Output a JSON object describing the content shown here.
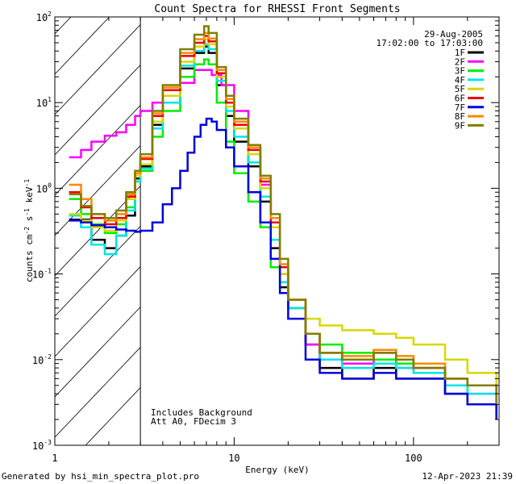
{
  "chart_data": {
    "type": "line",
    "title": "Count Spectra for RHESSI Front Segments",
    "xlabel": "Energy (keV)",
    "ylabel": "counts cm",
    "ylabel_sup1": "-2",
    "ylabel_mid": " s",
    "ylabel_sup2": "-1",
    "ylabel_mid2": " keV",
    "ylabel_sup3": "-1",
    "x_scale": "log",
    "y_scale": "log",
    "xlim": [
      1,
      300
    ],
    "ylim": [
      0.001,
      100
    ],
    "x_tick_labels": [
      {
        "value": 1,
        "label": "1"
      },
      {
        "value": 10,
        "label": "10"
      },
      {
        "value": 100,
        "label": "100"
      }
    ],
    "y_tick_labels": [
      {
        "value": 100,
        "base": "10",
        "exp": "2"
      },
      {
        "value": 10,
        "base": "10",
        "exp": "1"
      },
      {
        "value": 1,
        "base": "10",
        "exp": "0"
      },
      {
        "value": 0.1,
        "base": "10",
        "exp": "-1"
      },
      {
        "value": 0.01,
        "base": "10",
        "exp": "-2"
      },
      {
        "value": 0.001,
        "base": "10",
        "exp": "-3"
      }
    ],
    "hatched_region_xmax": 3,
    "date": "29-Aug-2005",
    "time_range": "17:02:00 to 17:03:00",
    "annotations": [
      "Includes Background",
      "Att A0, FDecim 3"
    ],
    "footer_left": "Generated by hsi_min_spectra_plot.pro",
    "footer_right": "12-Apr-2023 21:39",
    "series": [
      {
        "name": "1F",
        "color": "#000000",
        "points": [
          [
            1.2,
            0.43
          ],
          [
            1.4,
            0.43
          ],
          [
            1.6,
            0.25
          ],
          [
            1.9,
            0.2
          ],
          [
            2.2,
            0.28
          ],
          [
            2.5,
            0.48
          ],
          [
            2.8,
            1.3
          ],
          [
            3.0,
            1.8
          ],
          [
            3.5,
            5.5
          ],
          [
            4,
            10
          ],
          [
            5,
            25
          ],
          [
            6,
            38
          ],
          [
            6.8,
            45
          ],
          [
            7.2,
            38
          ],
          [
            8,
            16
          ],
          [
            9,
            7
          ],
          [
            10,
            3.5
          ],
          [
            12,
            1.8
          ],
          [
            14,
            0.7
          ],
          [
            16,
            0.2
          ],
          [
            18,
            0.07
          ],
          [
            20,
            0.04
          ],
          [
            25,
            0.015
          ],
          [
            30,
            0.008
          ],
          [
            40,
            0.006
          ],
          [
            60,
            0.008
          ],
          [
            80,
            0.006
          ],
          [
            100,
            0.006
          ],
          [
            150,
            0.004
          ],
          [
            200,
            0.003
          ],
          [
            290,
            0.002
          ]
        ]
      },
      {
        "name": "2F",
        "color": "#ff00ff",
        "points": [
          [
            1.2,
            2.3
          ],
          [
            1.4,
            2.8
          ],
          [
            1.6,
            3.5
          ],
          [
            1.9,
            4.1
          ],
          [
            2.2,
            4.5
          ],
          [
            2.5,
            5.5
          ],
          [
            2.8,
            7
          ],
          [
            3.0,
            8
          ],
          [
            3.5,
            10
          ],
          [
            4,
            12
          ],
          [
            5,
            17
          ],
          [
            6,
            24
          ],
          [
            6.8,
            24
          ],
          [
            7.5,
            21
          ],
          [
            8.5,
            16
          ],
          [
            10,
            8
          ],
          [
            12,
            3
          ],
          [
            14,
            1.1
          ],
          [
            16,
            0.35
          ],
          [
            18,
            0.1
          ],
          [
            20,
            0.04
          ],
          [
            25,
            0.015
          ],
          [
            30,
            0.01
          ],
          [
            40,
            0.009
          ],
          [
            60,
            0.01
          ],
          [
            80,
            0.008
          ],
          [
            100,
            0.007
          ],
          [
            150,
            0.005
          ],
          [
            200,
            0.004
          ],
          [
            290,
            0.003
          ]
        ]
      },
      {
        "name": "3F",
        "color": "#00ee00",
        "points": [
          [
            1.2,
            0.75
          ],
          [
            1.4,
            0.5
          ],
          [
            1.6,
            0.38
          ],
          [
            1.9,
            0.3
          ],
          [
            2.2,
            0.38
          ],
          [
            2.5,
            0.6
          ],
          [
            2.8,
            1.2
          ],
          [
            3.0,
            1.6
          ],
          [
            3.5,
            4
          ],
          [
            4,
            8
          ],
          [
            5,
            20
          ],
          [
            6,
            28
          ],
          [
            6.8,
            32
          ],
          [
            7.2,
            28
          ],
          [
            8,
            10
          ],
          [
            9,
            3.5
          ],
          [
            10,
            1.5
          ],
          [
            12,
            0.7
          ],
          [
            14,
            0.35
          ],
          [
            16,
            0.12
          ],
          [
            18,
            0.06
          ],
          [
            20,
            0.04
          ],
          [
            25,
            0.02
          ],
          [
            30,
            0.015
          ],
          [
            40,
            0.012
          ],
          [
            60,
            0.01
          ],
          [
            80,
            0.009
          ],
          [
            100,
            0.008
          ],
          [
            150,
            0.006
          ],
          [
            200,
            0.005
          ],
          [
            290,
            0.004
          ]
        ]
      },
      {
        "name": "4F",
        "color": "#00e5e5",
        "points": [
          [
            1.2,
            0.48
          ],
          [
            1.4,
            0.35
          ],
          [
            1.6,
            0.22
          ],
          [
            1.9,
            0.17
          ],
          [
            2.2,
            0.28
          ],
          [
            2.5,
            0.55
          ],
          [
            2.8,
            1.2
          ],
          [
            3.0,
            1.7
          ],
          [
            3.5,
            5
          ],
          [
            4,
            10
          ],
          [
            5,
            27
          ],
          [
            6,
            40
          ],
          [
            6.8,
            48
          ],
          [
            7.2,
            42
          ],
          [
            8,
            18
          ],
          [
            9,
            8
          ],
          [
            10,
            4
          ],
          [
            12,
            2
          ],
          [
            14,
            0.8
          ],
          [
            16,
            0.25
          ],
          [
            18,
            0.08
          ],
          [
            20,
            0.04
          ],
          [
            25,
            0.02
          ],
          [
            30,
            0.01
          ],
          [
            40,
            0.008
          ],
          [
            60,
            0.009
          ],
          [
            80,
            0.008
          ],
          [
            100,
            0.007
          ],
          [
            150,
            0.005
          ],
          [
            200,
            0.004
          ],
          [
            290,
            0.003
          ]
        ]
      },
      {
        "name": "5F",
        "color": "#d8d800",
        "points": [
          [
            1.2,
            0.5
          ],
          [
            1.4,
            0.42
          ],
          [
            1.6,
            0.35
          ],
          [
            1.9,
            0.32
          ],
          [
            2.2,
            0.42
          ],
          [
            2.5,
            0.75
          ],
          [
            2.8,
            1.4
          ],
          [
            3.0,
            1.9
          ],
          [
            3.5,
            6
          ],
          [
            4,
            12
          ],
          [
            5,
            30
          ],
          [
            6,
            45
          ],
          [
            6.8,
            55
          ],
          [
            7.2,
            48
          ],
          [
            8,
            20
          ],
          [
            9,
            9
          ],
          [
            10,
            5
          ],
          [
            12,
            2.5
          ],
          [
            14,
            1
          ],
          [
            16,
            0.35
          ],
          [
            18,
            0.1
          ],
          [
            20,
            0.05
          ],
          [
            25,
            0.03
          ],
          [
            30,
            0.025
          ],
          [
            40,
            0.022
          ],
          [
            60,
            0.02
          ],
          [
            80,
            0.018
          ],
          [
            100,
            0.015
          ],
          [
            150,
            0.01
          ],
          [
            200,
            0.007
          ],
          [
            290,
            0.004
          ]
        ]
      },
      {
        "name": "6F",
        "color": "#ee0000",
        "points": [
          [
            1.2,
            0.9
          ],
          [
            1.4,
            0.6
          ],
          [
            1.6,
            0.45
          ],
          [
            1.9,
            0.38
          ],
          [
            2.2,
            0.45
          ],
          [
            2.5,
            0.8
          ],
          [
            2.8,
            1.5
          ],
          [
            3.0,
            2.2
          ],
          [
            3.5,
            7
          ],
          [
            4,
            14
          ],
          [
            5,
            35
          ],
          [
            6,
            50
          ],
          [
            6.8,
            60
          ],
          [
            7.2,
            52
          ],
          [
            8,
            22
          ],
          [
            9,
            10
          ],
          [
            10,
            5.5
          ],
          [
            12,
            2.8
          ],
          [
            14,
            1.2
          ],
          [
            16,
            0.4
          ],
          [
            18,
            0.12
          ],
          [
            20,
            0.05
          ],
          [
            25,
            0.02
          ],
          [
            30,
            0.012
          ],
          [
            40,
            0.01
          ],
          [
            60,
            0.012
          ],
          [
            80,
            0.01
          ],
          [
            100,
            0.008
          ],
          [
            150,
            0.006
          ],
          [
            200,
            0.005
          ],
          [
            290,
            0.003
          ]
        ]
      },
      {
        "name": "7F",
        "color": "#0000dd",
        "points": [
          [
            1.2,
            0.42
          ],
          [
            1.4,
            0.4
          ],
          [
            1.6,
            0.37
          ],
          [
            1.9,
            0.35
          ],
          [
            2.2,
            0.33
          ],
          [
            2.5,
            0.32
          ],
          [
            2.8,
            0.31
          ],
          [
            3.0,
            0.32
          ],
          [
            3.5,
            0.4
          ],
          [
            4,
            0.65
          ],
          [
            4.5,
            1.0
          ],
          [
            5,
            1.6
          ],
          [
            5.5,
            2.6
          ],
          [
            6,
            4
          ],
          [
            6.5,
            5.5
          ],
          [
            7,
            6.5
          ],
          [
            7.5,
            6
          ],
          [
            8,
            4.8
          ],
          [
            9,
            3
          ],
          [
            10,
            1.8
          ],
          [
            12,
            0.9
          ],
          [
            14,
            0.4
          ],
          [
            16,
            0.15
          ],
          [
            18,
            0.06
          ],
          [
            20,
            0.03
          ],
          [
            25,
            0.01
          ],
          [
            30,
            0.007
          ],
          [
            40,
            0.006
          ],
          [
            60,
            0.007
          ],
          [
            80,
            0.006
          ],
          [
            100,
            0.006
          ],
          [
            150,
            0.004
          ],
          [
            200,
            0.003
          ],
          [
            290,
            0.002
          ]
        ]
      },
      {
        "name": "8F",
        "color": "#ff8800",
        "points": [
          [
            1.2,
            1.1
          ],
          [
            1.4,
            0.75
          ],
          [
            1.6,
            0.5
          ],
          [
            1.9,
            0.42
          ],
          [
            2.2,
            0.5
          ],
          [
            2.5,
            0.85
          ],
          [
            2.8,
            1.5
          ],
          [
            3.0,
            2.3
          ],
          [
            3.5,
            7.5
          ],
          [
            4,
            15
          ],
          [
            5,
            38
          ],
          [
            6,
            55
          ],
          [
            6.8,
            65
          ],
          [
            7.2,
            56
          ],
          [
            8,
            24
          ],
          [
            9,
            11
          ],
          [
            10,
            6
          ],
          [
            12,
            3
          ],
          [
            14,
            1.3
          ],
          [
            16,
            0.45
          ],
          [
            18,
            0.13
          ],
          [
            20,
            0.05
          ],
          [
            25,
            0.02
          ],
          [
            30,
            0.012
          ],
          [
            40,
            0.011
          ],
          [
            60,
            0.013
          ],
          [
            80,
            0.011
          ],
          [
            100,
            0.009
          ],
          [
            150,
            0.006
          ],
          [
            200,
            0.005
          ],
          [
            290,
            0.003
          ]
        ]
      },
      {
        "name": "9F",
        "color": "#7f7f00",
        "points": [
          [
            1.2,
            0.85
          ],
          [
            1.4,
            0.62
          ],
          [
            1.6,
            0.5
          ],
          [
            1.9,
            0.45
          ],
          [
            2.2,
            0.55
          ],
          [
            2.5,
            0.9
          ],
          [
            2.8,
            1.6
          ],
          [
            3.0,
            2.5
          ],
          [
            3.5,
            8
          ],
          [
            4,
            16
          ],
          [
            5,
            42
          ],
          [
            6,
            62
          ],
          [
            6.8,
            78
          ],
          [
            7.2,
            65
          ],
          [
            8,
            26
          ],
          [
            9,
            12
          ],
          [
            10,
            6.5
          ],
          [
            12,
            3.2
          ],
          [
            14,
            1.4
          ],
          [
            16,
            0.5
          ],
          [
            18,
            0.15
          ],
          [
            20,
            0.05
          ],
          [
            25,
            0.02
          ],
          [
            30,
            0.012
          ],
          [
            40,
            0.01
          ],
          [
            60,
            0.012
          ],
          [
            80,
            0.01
          ],
          [
            100,
            0.008
          ],
          [
            150,
            0.006
          ],
          [
            200,
            0.005
          ],
          [
            290,
            0.003
          ]
        ]
      }
    ]
  }
}
